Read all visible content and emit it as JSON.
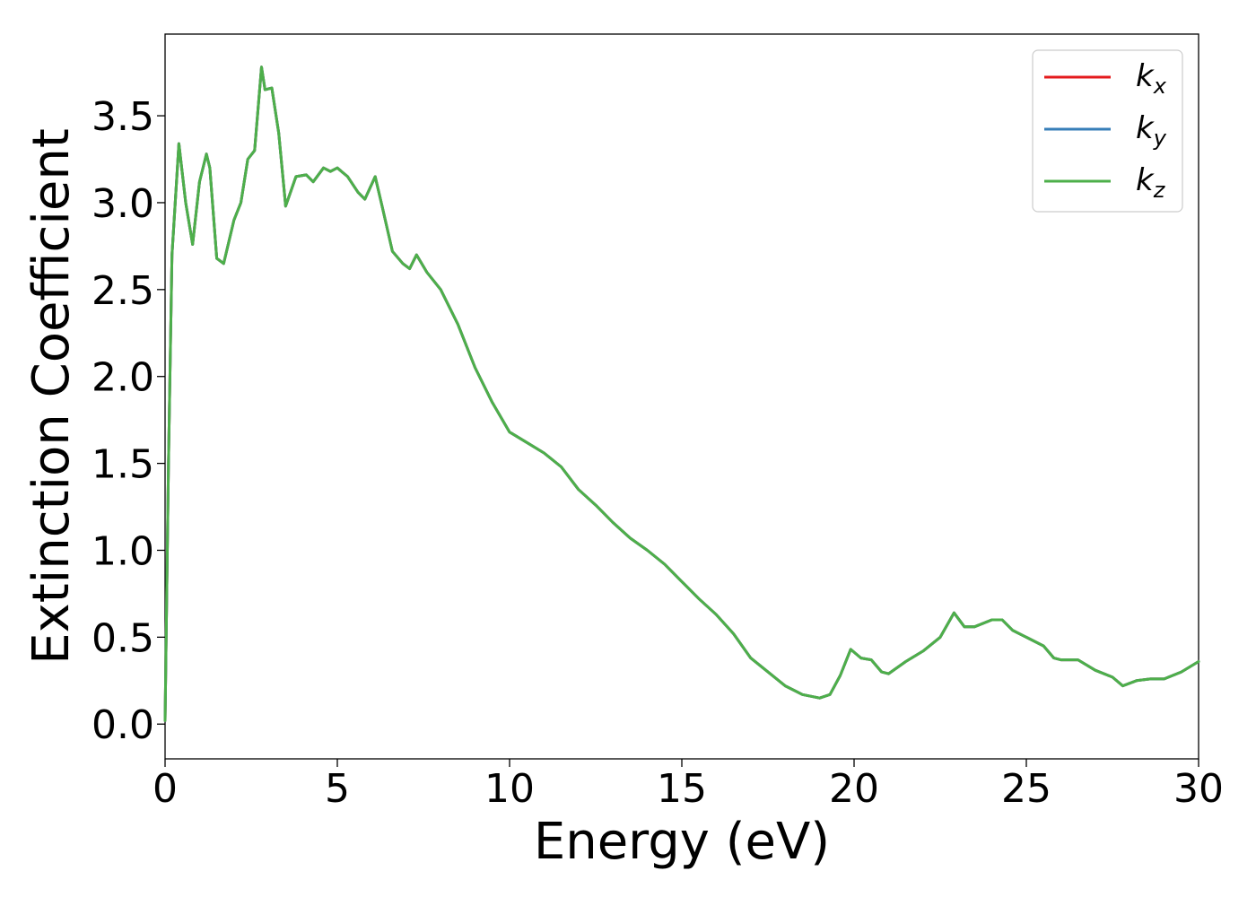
{
  "chart_data": {
    "type": "line",
    "title": "",
    "xlabel": "Energy (eV)",
    "ylabel": "Extinction Coefficient",
    "xlim": [
      0,
      30
    ],
    "ylim": [
      -0.2,
      3.97
    ],
    "xticks": [
      0,
      5,
      10,
      15,
      20,
      25,
      30
    ],
    "xtick_labels": [
      "0",
      "5",
      "10",
      "15",
      "20",
      "25",
      "30"
    ],
    "yticks": [
      0.0,
      0.5,
      1.0,
      1.5,
      2.0,
      2.5,
      3.0,
      3.5
    ],
    "ytick_labels": [
      "0.0",
      "0.5",
      "1.0",
      "1.5",
      "2.0",
      "2.5",
      "3.0",
      "3.5"
    ],
    "grid": false,
    "legend_position": "top-right",
    "series": [
      {
        "name": "k",
        "subscript": "x",
        "color": "#e41a1c"
      },
      {
        "name": "k",
        "subscript": "y",
        "color": "#377eb8"
      },
      {
        "name": "k",
        "subscript": "z",
        "color": "#4daf4a"
      }
    ],
    "x": [
      0,
      0.1,
      0.2,
      0.4,
      0.6,
      0.8,
      1.0,
      1.2,
      1.3,
      1.5,
      1.7,
      2.0,
      2.2,
      2.4,
      2.6,
      2.8,
      2.9,
      3.1,
      3.3,
      3.5,
      3.8,
      4.1,
      4.3,
      4.6,
      4.8,
      5.0,
      5.3,
      5.6,
      5.8,
      6.1,
      6.3,
      6.6,
      6.9,
      7.1,
      7.3,
      7.6,
      8.0,
      8.5,
      9.0,
      9.5,
      10.0,
      10.5,
      11.0,
      11.5,
      12.0,
      12.5,
      13.0,
      13.5,
      14.0,
      14.5,
      15.0,
      15.5,
      16.0,
      16.5,
      17.0,
      17.5,
      18.0,
      18.5,
      19.0,
      19.3,
      19.6,
      19.9,
      20.2,
      20.5,
      20.8,
      21.0,
      21.5,
      22.0,
      22.5,
      22.9,
      23.2,
      23.5,
      24.0,
      24.3,
      24.6,
      25.0,
      25.5,
      25.8,
      26.0,
      26.5,
      27.0,
      27.5,
      27.8,
      28.2,
      28.6,
      29.0,
      29.5,
      30.0
    ],
    "values": [
      0.02,
      1.5,
      2.7,
      3.34,
      3.0,
      2.76,
      3.12,
      3.28,
      3.2,
      2.68,
      2.65,
      2.9,
      3.0,
      3.25,
      3.3,
      3.78,
      3.65,
      3.66,
      3.4,
      2.98,
      3.15,
      3.16,
      3.12,
      3.2,
      3.18,
      3.2,
      3.15,
      3.06,
      3.02,
      3.15,
      2.98,
      2.72,
      2.65,
      2.62,
      2.7,
      2.6,
      2.5,
      2.3,
      2.05,
      1.85,
      1.68,
      1.62,
      1.56,
      1.48,
      1.35,
      1.26,
      1.16,
      1.07,
      1.0,
      0.92,
      0.82,
      0.72,
      0.63,
      0.52,
      0.38,
      0.3,
      0.22,
      0.17,
      0.15,
      0.17,
      0.28,
      0.43,
      0.38,
      0.37,
      0.3,
      0.29,
      0.36,
      0.42,
      0.5,
      0.64,
      0.56,
      0.56,
      0.6,
      0.6,
      0.54,
      0.5,
      0.45,
      0.38,
      0.37,
      0.37,
      0.31,
      0.27,
      0.22,
      0.25,
      0.26,
      0.26,
      0.3,
      0.36
    ]
  }
}
